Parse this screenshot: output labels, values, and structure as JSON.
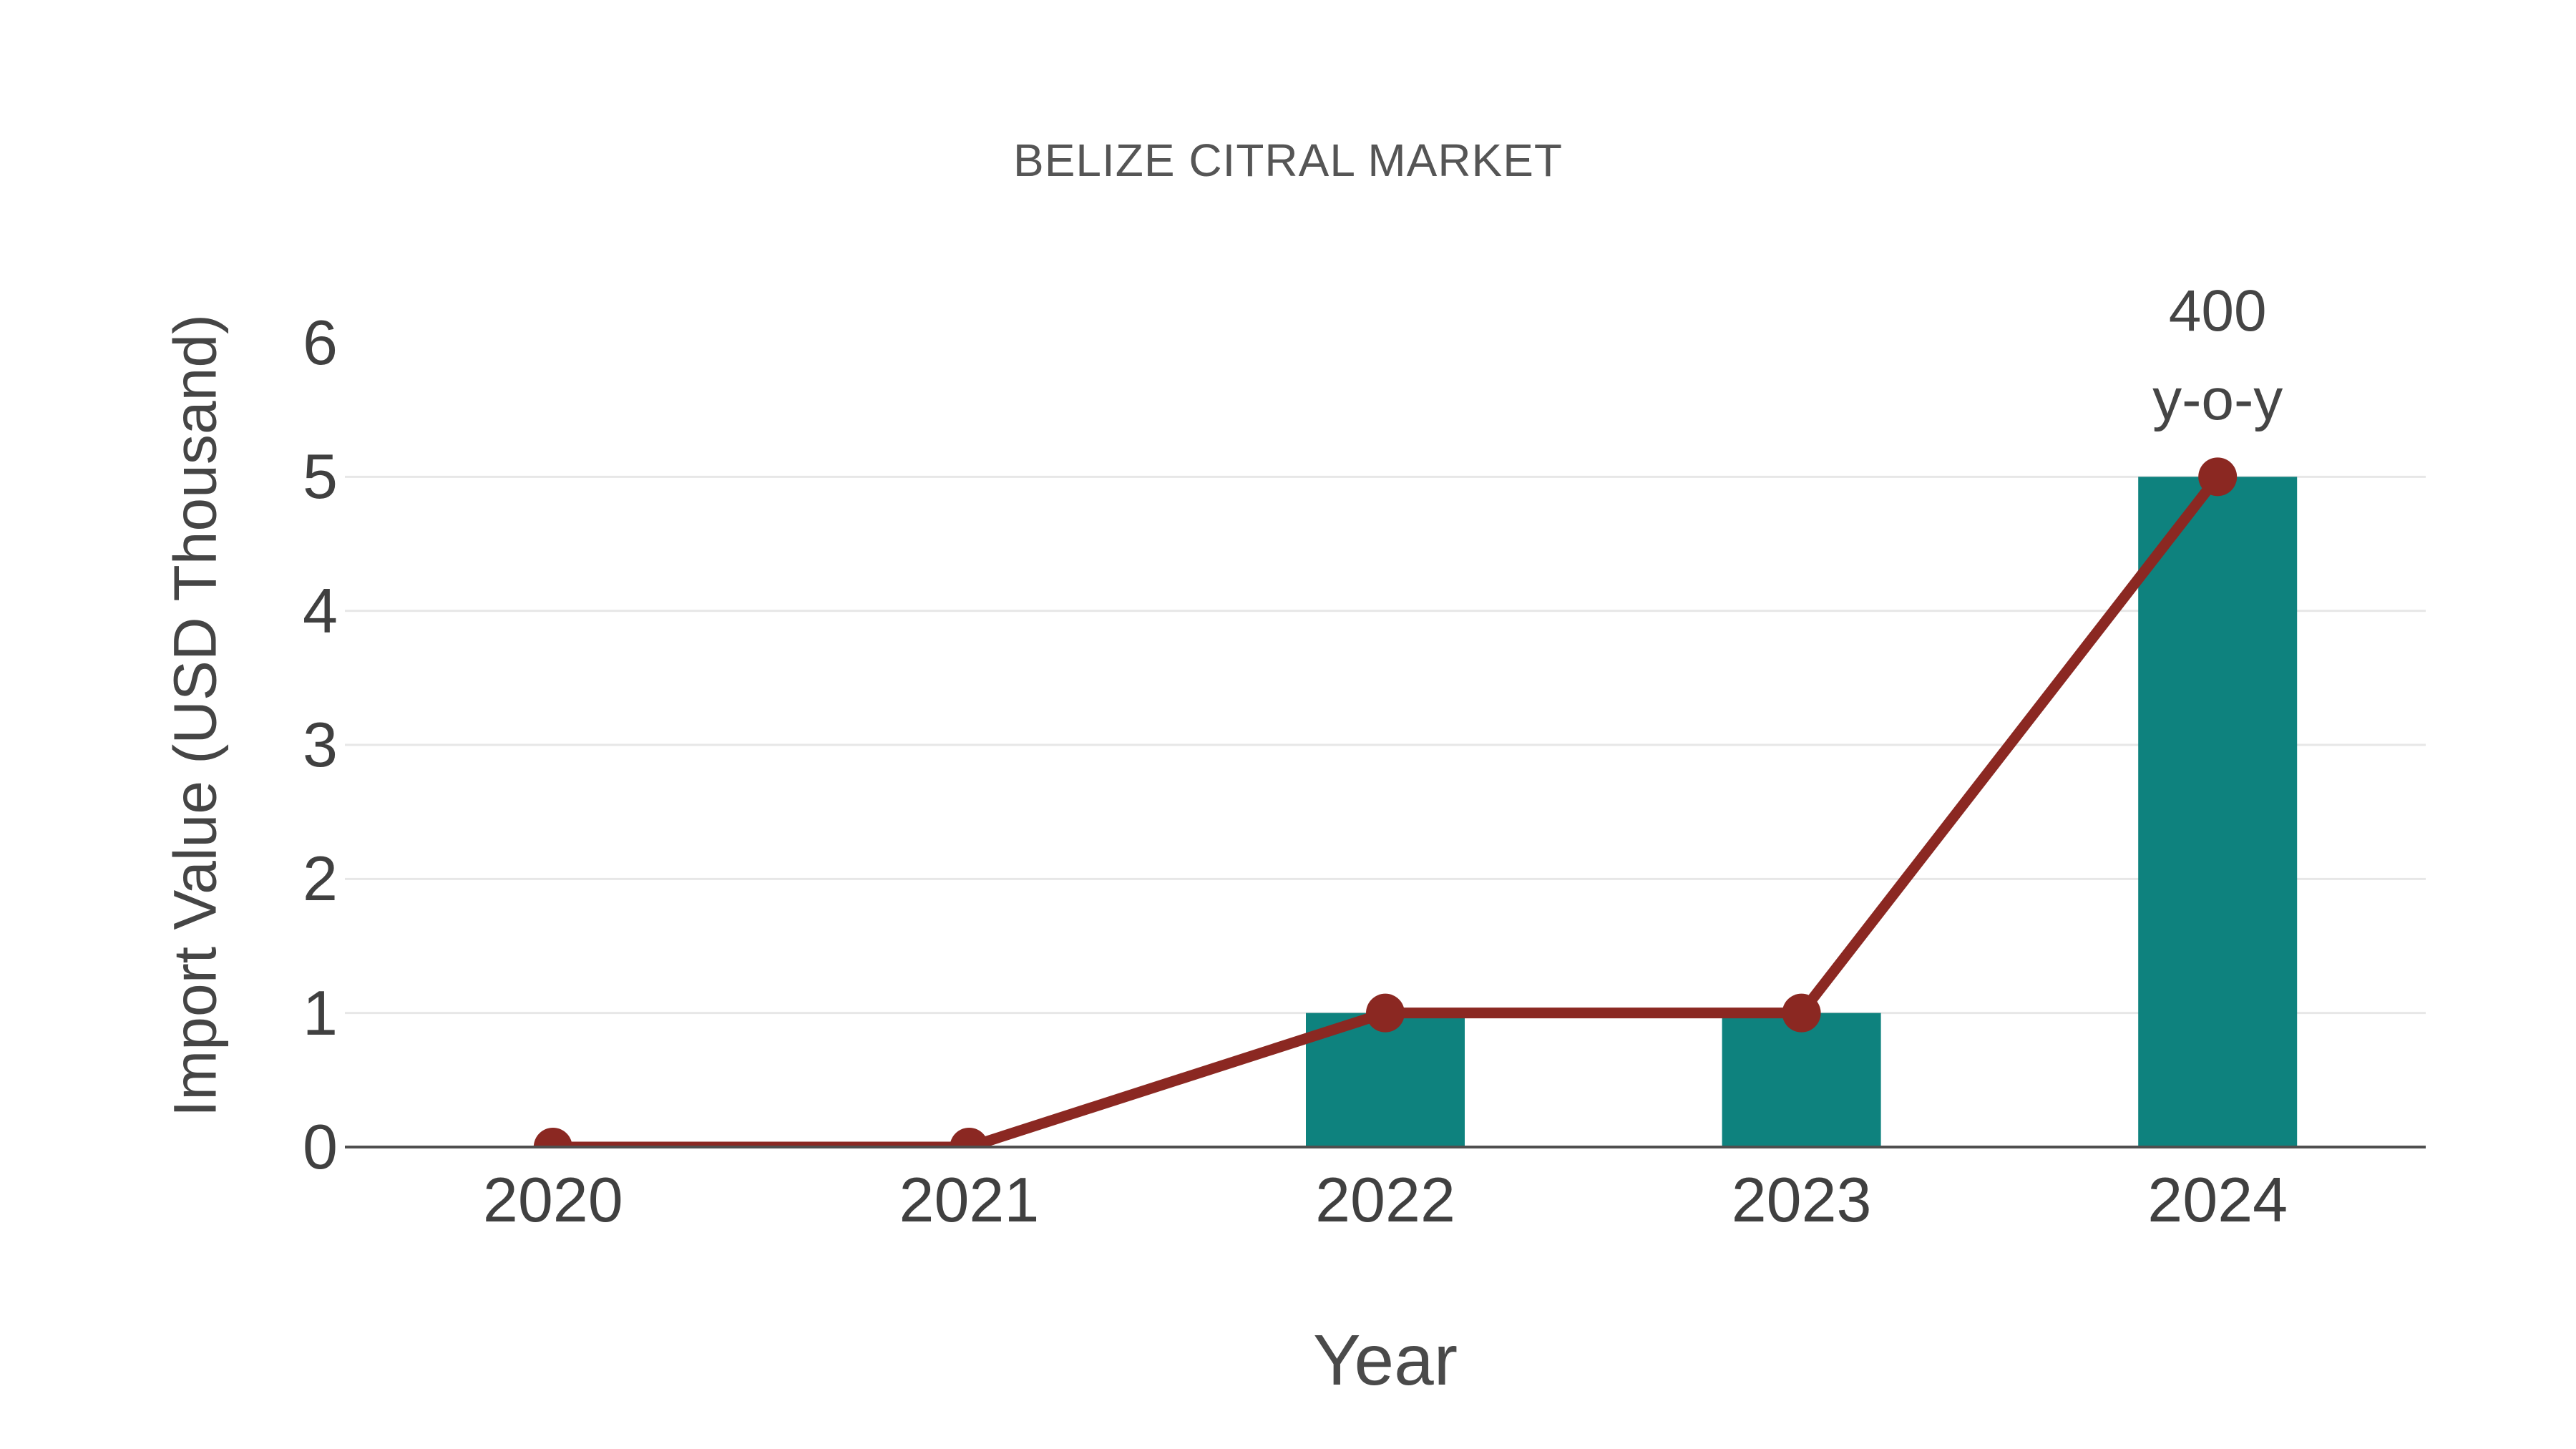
{
  "title": "BELIZE CITRAL MARKET",
  "chart_data": {
    "type": "bar",
    "title": "BELIZE CITRAL MARKET",
    "categories": [
      "2020",
      "2021",
      "2022",
      "2023",
      "2024"
    ],
    "series": [
      {
        "name": "import-value-bars",
        "type": "bar",
        "values": [
          0,
          0,
          1,
          1,
          5
        ]
      },
      {
        "name": "import-value-line",
        "type": "line",
        "values": [
          0,
          0,
          1,
          1,
          5
        ]
      }
    ],
    "xlabel": "Year",
    "ylabel": "Import Value (USD Thousand)",
    "ylim": [
      0,
      6
    ],
    "yticks": [
      0,
      1,
      2,
      3,
      4,
      5,
      6
    ],
    "gridline_ticks": [
      1,
      2,
      3,
      4,
      5
    ],
    "grid": "horizontal-only",
    "legend": "none",
    "annotation": {
      "text": [
        "400",
        "y-o-y"
      ],
      "x": "2024",
      "y": 5
    }
  },
  "colors": {
    "background": "#ffffff",
    "bar": "#0e827e",
    "line": "#8b2822",
    "marker": "#8b2822",
    "grid": "#e7e7e7",
    "axis_line": "#4f4f4f",
    "tick_text": "#404040",
    "title_text": "#555555",
    "label_text": "#454545"
  }
}
